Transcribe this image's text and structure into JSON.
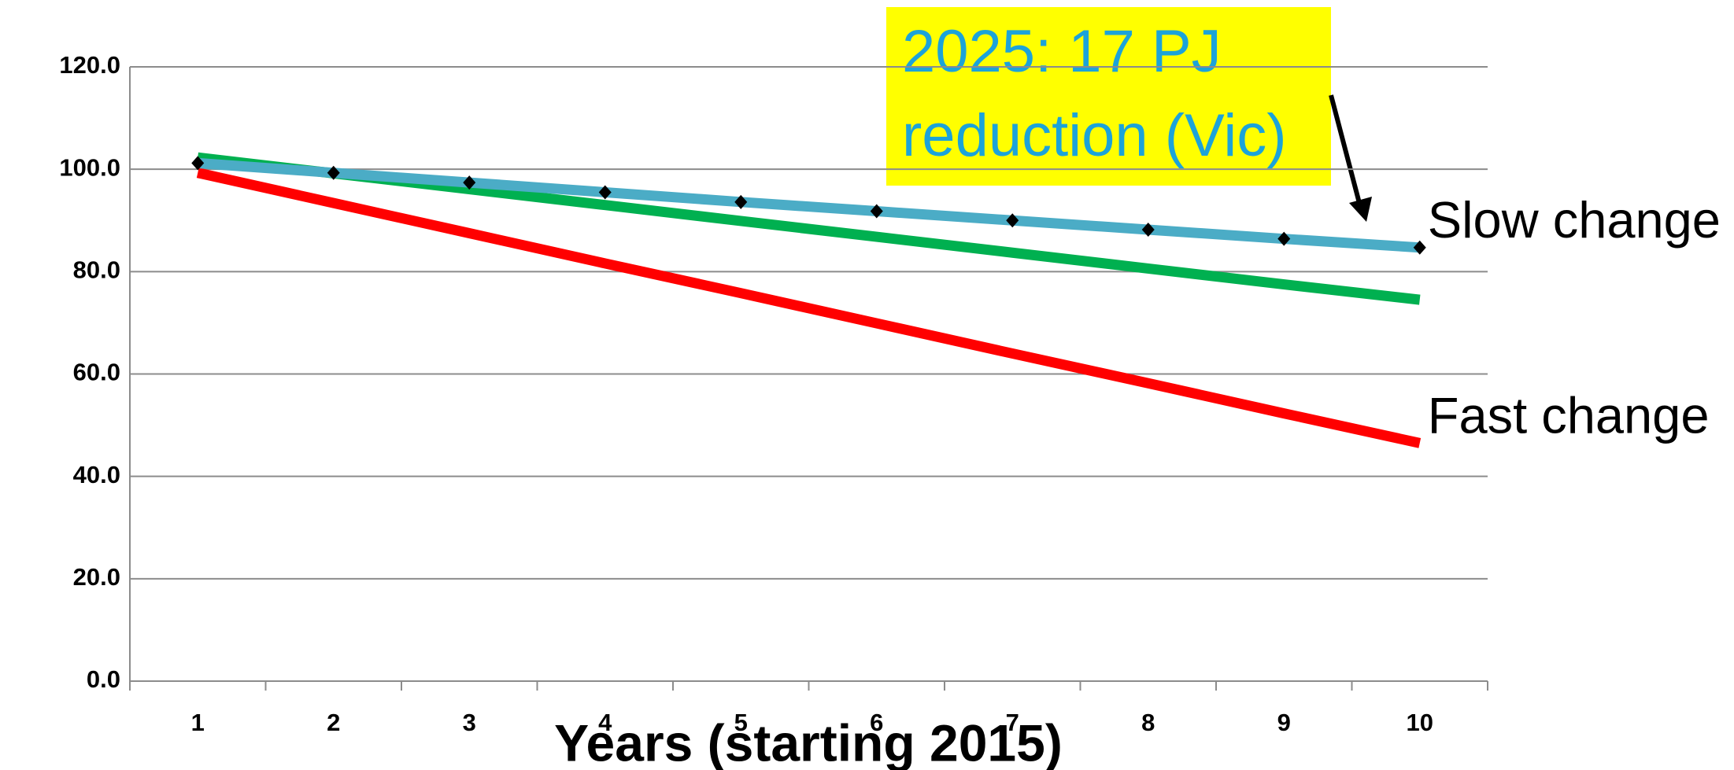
{
  "chart_data": {
    "type": "line",
    "categories": [
      "1",
      "2",
      "3",
      "4",
      "5",
      "6",
      "7",
      "8",
      "9",
      "10"
    ],
    "series": [
      {
        "name": "Fast change",
        "color": "#ff0000",
        "values": [
          99.3,
          93.4,
          87.5,
          81.6,
          75.8,
          69.9,
          64.0,
          58.2,
          52.3,
          46.5
        ]
      },
      {
        "color": "#00b050",
        "values": [
          102.3,
          99.2,
          96.1,
          93.0,
          89.9,
          86.8,
          83.7,
          80.6,
          77.5,
          74.5
        ]
      },
      {
        "name": "Slow change",
        "color": "#4bacc6",
        "values": [
          101.2,
          99.3,
          97.4,
          95.5,
          93.6,
          91.8,
          90.0,
          88.2,
          86.4,
          84.7
        ]
      }
    ],
    "x_label": "Years (starting 2015)",
    "ylim": [
      0,
      120
    ],
    "yticks": [
      {
        "value": 0,
        "label": "0.0"
      },
      {
        "value": 20,
        "label": "20.0"
      },
      {
        "value": 40,
        "label": "40.0"
      },
      {
        "value": 60,
        "label": "60.0"
      },
      {
        "value": 80,
        "label": "80.0"
      },
      {
        "value": 100,
        "label": "100.0"
      },
      {
        "value": 120,
        "label": "120.0"
      }
    ],
    "grid": true,
    "annotation": {
      "lines": [
        "2025: 17 PJ",
        "reduction (Vic)"
      ]
    }
  }
}
